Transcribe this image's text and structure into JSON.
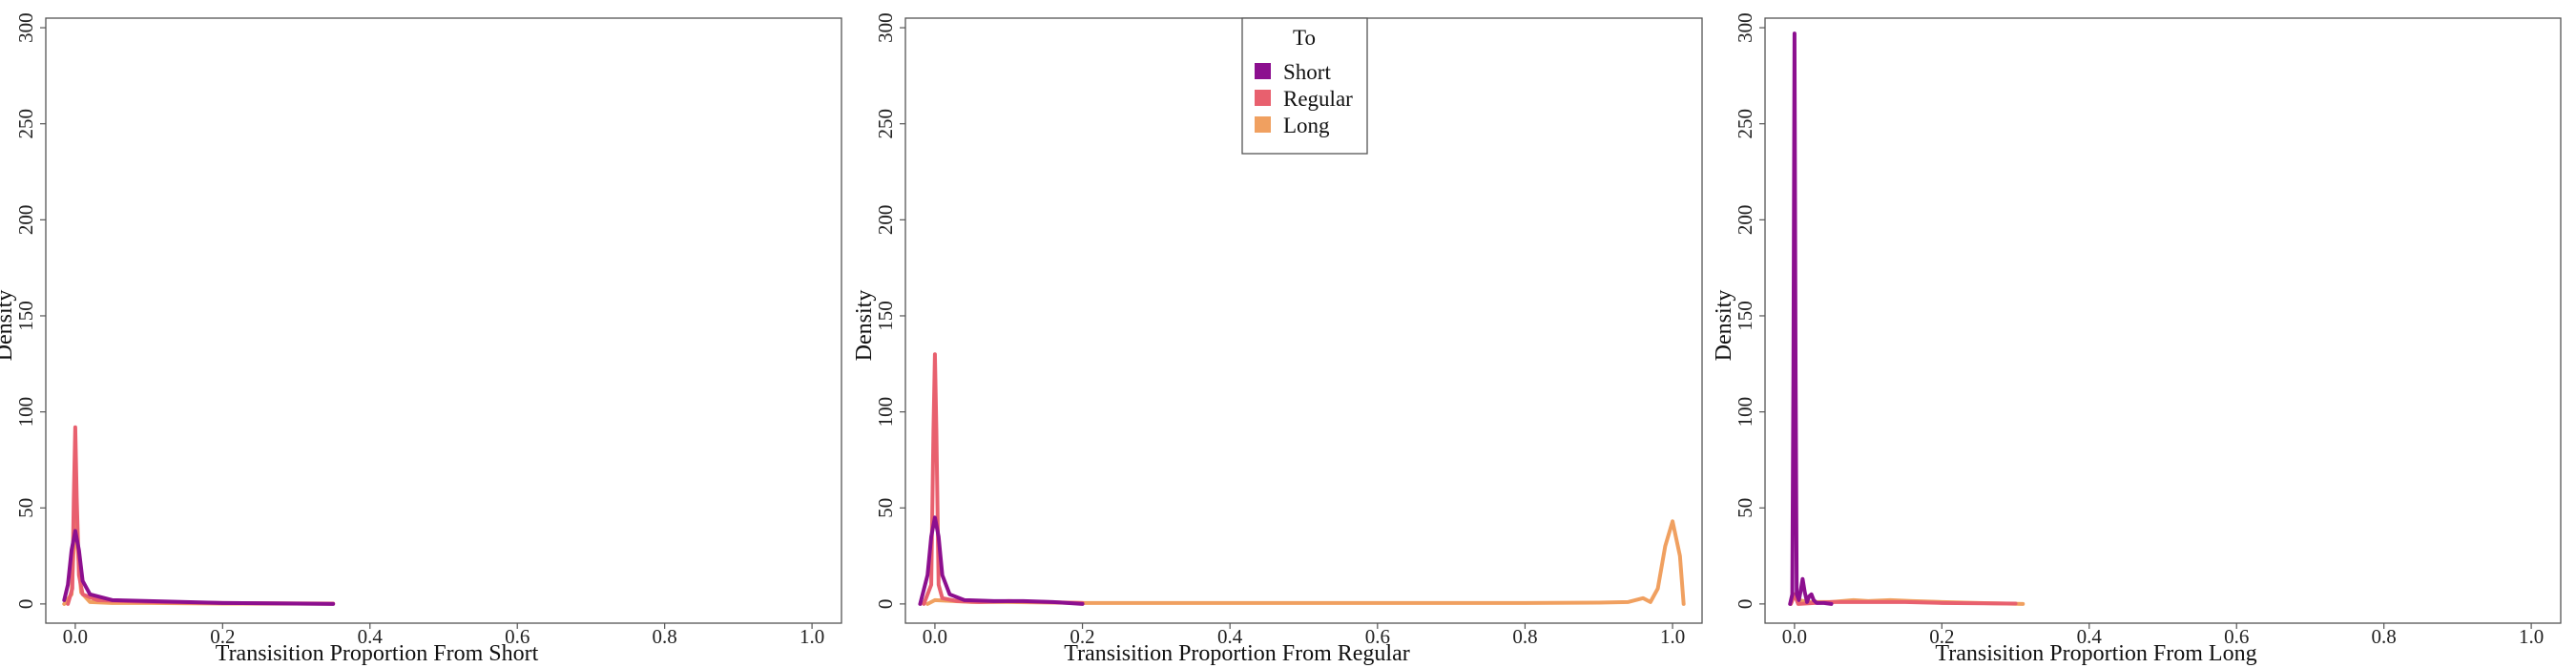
{
  "chart_data": {
    "type": "line",
    "legend": {
      "title": "To",
      "placement": "top-center of middle panel",
      "entries": [
        "Short",
        "Regular",
        "Long"
      ]
    },
    "colors": {
      "Short": "#8c0f8f",
      "Regular": "#e8606e",
      "Long": "#f0a060"
    },
    "panels": [
      {
        "xlabel": "Transisition Proportion From Short",
        "ylabel": "Density",
        "xlim": [
          -0.04,
          1.04
        ],
        "ylim": [
          -10,
          305
        ],
        "xticks": [
          "0.0",
          "0.2",
          "0.4",
          "0.6",
          "0.8",
          "1.0"
        ],
        "yticks": [
          "0",
          "50",
          "100",
          "150",
          "200",
          "250",
          "300"
        ],
        "series": [
          {
            "name": "Long",
            "x": [
              -0.015,
              -0.005,
              -0.002,
              0.0,
              0.003,
              0.008,
              0.02,
              0.05,
              0.1,
              0.2,
              0.35
            ],
            "y": [
              0,
              5,
              30,
              48,
              30,
              6,
              1,
              0.5,
              0.5,
              0.2,
              0.1
            ]
          },
          {
            "name": "Regular",
            "x": [
              -0.01,
              -0.004,
              -0.002,
              0.0,
              0.002,
              0.005,
              0.01,
              0.03,
              0.1,
              0.2,
              0.35
            ],
            "y": [
              0,
              8,
              55,
              92,
              55,
              15,
              5,
              2,
              1,
              0.5,
              0.2
            ]
          },
          {
            "name": "Short",
            "x": [
              -0.015,
              -0.01,
              -0.005,
              0.0,
              0.005,
              0.01,
              0.02,
              0.05,
              0.1,
              0.15,
              0.2,
              0.3,
              0.35
            ],
            "y": [
              2,
              10,
              28,
              38,
              28,
              12,
              5,
              2,
              1.5,
              1,
              0.5,
              0.2,
              0
            ]
          }
        ]
      },
      {
        "xlabel": "Transisition Proportion From Regular",
        "ylabel": "Density",
        "xlim": [
          -0.04,
          1.04
        ],
        "ylim": [
          -10,
          305
        ],
        "xticks": [
          "0.0",
          "0.2",
          "0.4",
          "0.6",
          "0.8",
          "1.0"
        ],
        "yticks": [
          "0",
          "50",
          "100",
          "150",
          "200",
          "250",
          "300"
        ],
        "series": [
          {
            "name": "Long",
            "x": [
              -0.01,
              0.0,
              0.05,
              0.1,
              0.2,
              0.4,
              0.6,
              0.8,
              0.9,
              0.94,
              0.96,
              0.97,
              0.98,
              0.99,
              1.0,
              1.01,
              1.015
            ],
            "y": [
              0,
              2,
              1,
              1,
              0.5,
              0.5,
              0.5,
              0.5,
              0.7,
              1,
              3,
              1,
              8,
              30,
              43,
              25,
              0
            ]
          },
          {
            "name": "Regular",
            "x": [
              -0.015,
              -0.005,
              -0.002,
              0.0,
              0.002,
              0.005,
              0.01,
              0.03,
              0.06,
              0.1,
              0.15,
              0.2
            ],
            "y": [
              0,
              10,
              90,
              130,
              90,
              10,
              3,
              1.5,
              1,
              1.5,
              1,
              0.5
            ]
          },
          {
            "name": "Short",
            "x": [
              -0.02,
              -0.01,
              -0.005,
              0.0,
              0.005,
              0.01,
              0.02,
              0.04,
              0.08,
              0.12,
              0.16,
              0.2
            ],
            "y": [
              0,
              15,
              35,
              45,
              35,
              15,
              5,
              2,
              1.5,
              1.5,
              1,
              0
            ]
          }
        ]
      },
      {
        "xlabel": "Transisition Proportion From Long",
        "ylabel": "Density",
        "xlim": [
          -0.04,
          1.04
        ],
        "ylim": [
          -10,
          305
        ],
        "xticks": [
          "0.0",
          "0.2",
          "0.4",
          "0.6",
          "0.8",
          "1.0"
        ],
        "yticks": [
          "0",
          "50",
          "100",
          "150",
          "200",
          "250",
          "300"
        ],
        "series": [
          {
            "name": "Long",
            "x": [
              -0.005,
              0.0,
              0.005,
              0.02,
              0.05,
              0.08,
              0.1,
              0.13,
              0.16,
              0.2,
              0.25,
              0.31
            ],
            "y": [
              0,
              5,
              2,
              1,
              1,
              2,
              1.5,
              2,
              1.5,
              1,
              0.5,
              0
            ]
          },
          {
            "name": "Regular",
            "x": [
              -0.005,
              -0.002,
              0.0,
              0.002,
              0.005,
              0.05,
              0.1,
              0.15,
              0.2,
              0.3
            ],
            "y": [
              0,
              3,
              5,
              3,
              0,
              1,
              1,
              1,
              0.5,
              0.2
            ]
          },
          {
            "name": "Short",
            "x": [
              -0.006,
              -0.003,
              -0.0015,
              0.0,
              0.0015,
              0.003,
              0.006,
              0.008,
              0.011,
              0.014,
              0.017,
              0.02,
              0.023,
              0.026,
              0.03,
              0.04,
              0.05
            ],
            "y": [
              0,
              5,
              120,
              297,
              120,
              5,
              2,
              6,
              13,
              6,
              1,
              4,
              5,
              2,
              0.5,
              0.5,
              0
            ]
          }
        ]
      }
    ]
  }
}
